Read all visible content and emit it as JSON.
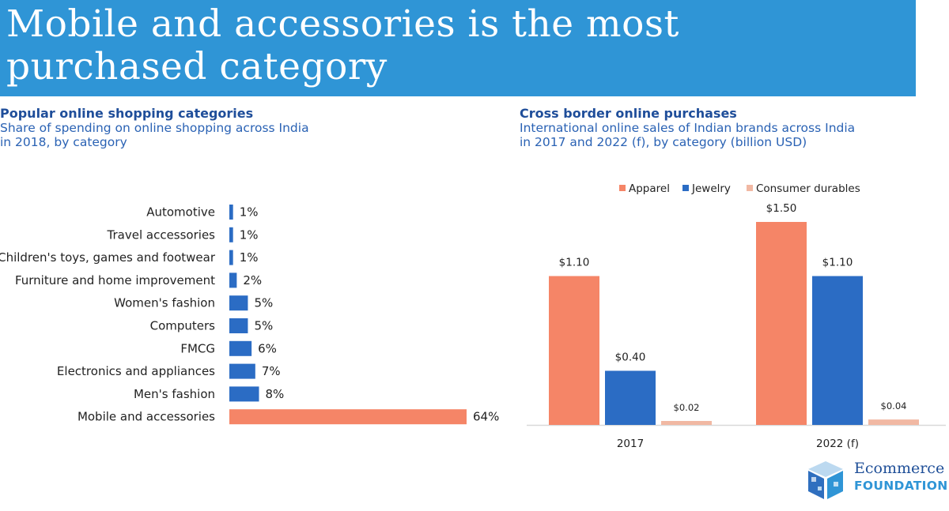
{
  "header": {
    "title_line1": "Mobile and accessories is the most",
    "title_line2": "purchased category"
  },
  "left": {
    "title": "Popular online shopping categories",
    "subtitle_line1": "Share of spending on online shopping across India",
    "subtitle_line2": "in 2018, by category"
  },
  "right": {
    "title": "Cross border online purchases",
    "subtitle_line1": "International online sales of Indian brands across India",
    "subtitle_line2": "in 2017 and 2022 (f), by category (billion USD)"
  },
  "chart_data": [
    {
      "type": "bar",
      "orientation": "horizontal",
      "title": "Popular online shopping categories",
      "categories": [
        "Automotive",
        "Travel accessories",
        "Children's toys, games and footwear",
        "Furniture and home improvement",
        "Women's fashion",
        "Computers",
        "FMCG",
        "Electronics and appliances",
        "Men's fashion",
        "Mobile and accessories"
      ],
      "values": [
        1,
        1,
        1,
        2,
        5,
        5,
        6,
        7,
        8,
        64
      ],
      "value_labels": [
        "1%",
        "1%",
        "1%",
        "2%",
        "5%",
        "5%",
        "6%",
        "7%",
        "8%",
        "64%"
      ],
      "unit": "%",
      "colors": [
        "#2b6cc4",
        "#2b6cc4",
        "#2b6cc4",
        "#2b6cc4",
        "#2b6cc4",
        "#2b6cc4",
        "#2b6cc4",
        "#2b6cc4",
        "#2b6cc4",
        "#f58567"
      ],
      "grid": false
    },
    {
      "type": "bar",
      "title": "Cross border online purchases",
      "categories": [
        "2017",
        "2022 (f)"
      ],
      "series": [
        {
          "name": "Apparel",
          "values": [
            1.1,
            1.5
          ],
          "labels": [
            "$1.10",
            "$1.50"
          ],
          "color": "#f58567"
        },
        {
          "name": "Jewelry",
          "values": [
            0.4,
            1.1
          ],
          "labels": [
            "$0.40",
            "$1.10"
          ],
          "color": "#2b6cc4"
        },
        {
          "name": "Consumer durables",
          "values": [
            0.02,
            0.04
          ],
          "labels": [
            "$0.02",
            "$0.04"
          ],
          "color": "#f1b8a3"
        }
      ],
      "ylim": [
        0,
        1.5
      ],
      "legend": "top",
      "grid": false
    }
  ],
  "logo": {
    "line1": "Ecommerce",
    "line2": "FOUNDATION"
  }
}
